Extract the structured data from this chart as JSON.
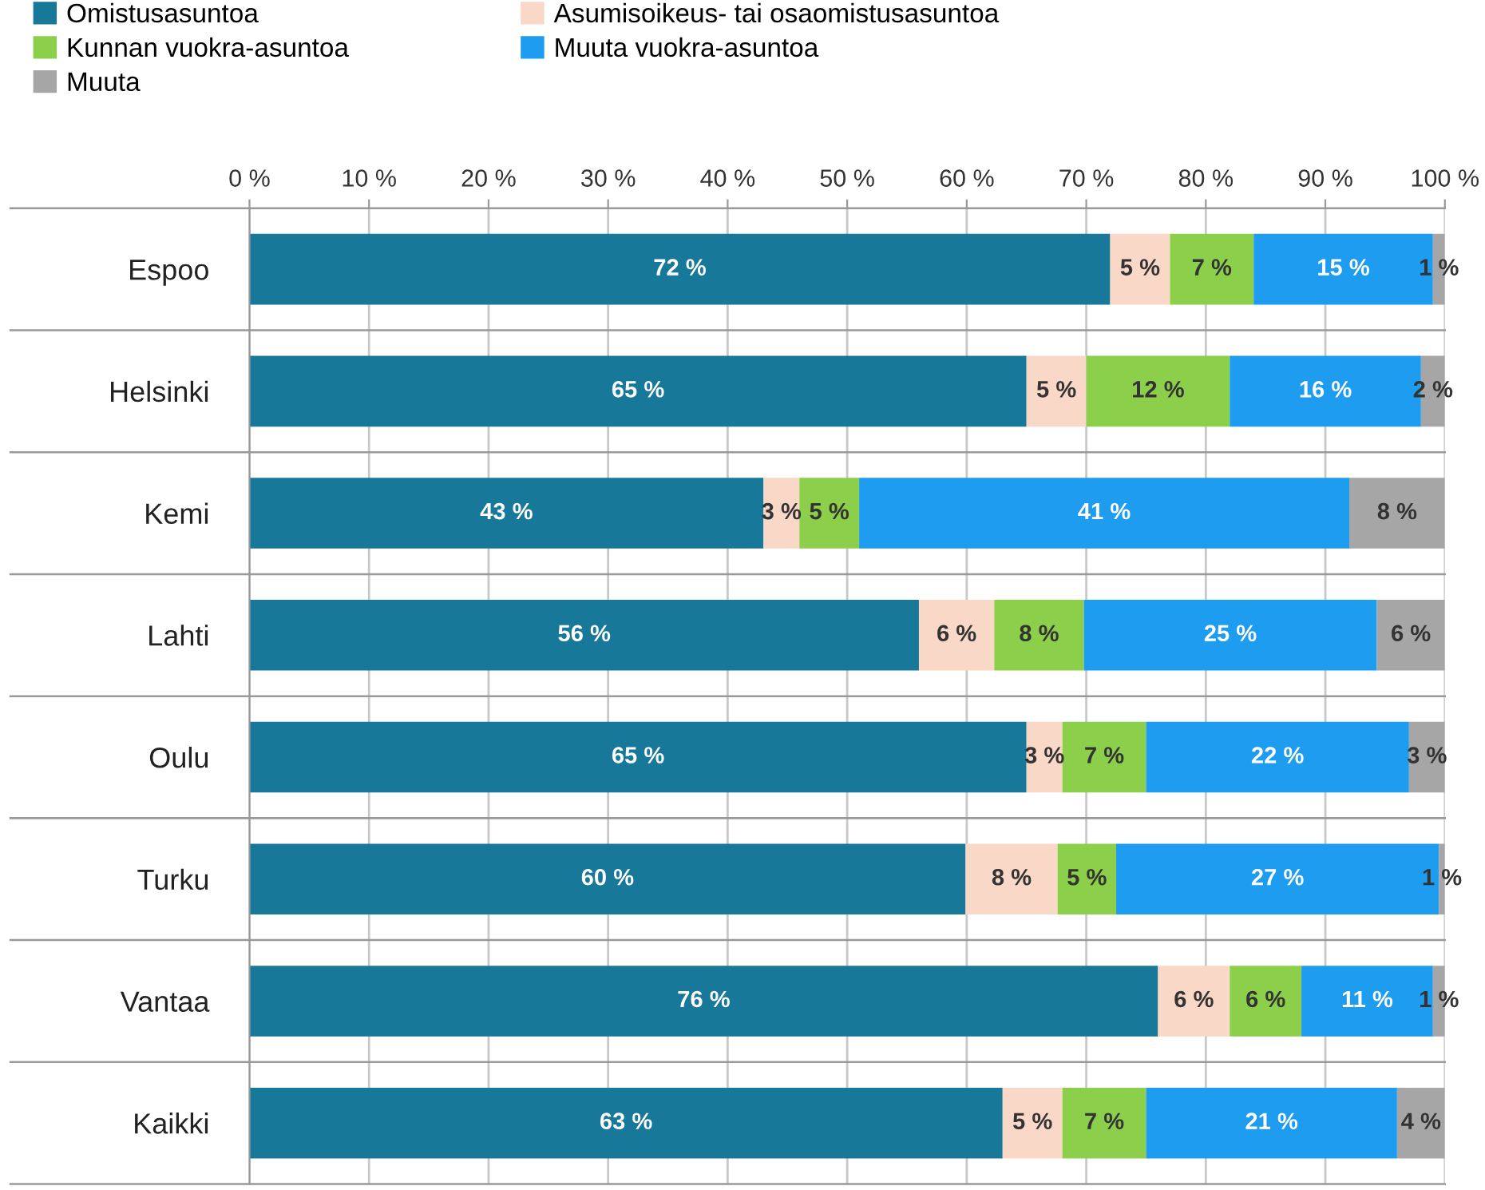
{
  "chart_data": {
    "type": "bar",
    "orientation": "horizontal",
    "stacked": true,
    "categories": [
      "Espoo",
      "Helsinki",
      "Kemi",
      "Lahti",
      "Oulu",
      "Turku",
      "Vantaa",
      "Kaikki"
    ],
    "series": [
      {
        "name": "Omistusasuntoa",
        "color": "#18789a",
        "values": [
          72,
          65,
          43,
          56.0,
          65,
          59.9,
          76,
          63
        ],
        "value_labels": [
          "72 %",
          "65 %",
          "43 %",
          "56 %",
          "65 %",
          "60 %",
          "76 %",
          "63 %"
        ]
      },
      {
        "name": "Asumisoikeus- tai osaomistusasuntoa",
        "color": "#f9d8c7",
        "values": [
          5,
          5,
          3,
          6.3,
          3,
          7.7,
          6,
          5
        ],
        "value_labels": [
          "5 %",
          "5 %",
          "3 %",
          "6 %",
          "3 %",
          "8 %",
          "6 %",
          "5 %"
        ]
      },
      {
        "name": "Kunnan vuokra-asuntoa",
        "color": "#8ccf4a",
        "values": [
          7,
          12,
          5,
          7.5,
          7,
          4.9,
          6,
          7
        ],
        "value_labels": [
          "7 %",
          "12 %",
          "5 %",
          "8 %",
          "7 %",
          "5 %",
          "6 %",
          "7 %"
        ]
      },
      {
        "name": "Muuta vuokra-asuntoa",
        "color": "#1e9cf0",
        "values": [
          15,
          16,
          41,
          24.5,
          22,
          27.0,
          11,
          21
        ],
        "value_labels": [
          "15 %",
          "16 %",
          "41 %",
          "25 %",
          "22 %",
          "27 %",
          "11 %",
          "21 %"
        ]
      },
      {
        "name": "Muuta",
        "color": "#a6a6a6",
        "values": [
          1,
          2,
          8,
          5.7,
          3,
          0.5,
          1,
          4
        ],
        "value_labels": [
          "1 %",
          "2 %",
          "8 %",
          "6 %",
          "3 %",
          "1 %",
          "1 %",
          "4 %"
        ]
      }
    ],
    "xlim": [
      0,
      100
    ],
    "xticks": [
      {
        "value": 0,
        "label": "0 %"
      },
      {
        "value": 10,
        "label": "10 %"
      },
      {
        "value": 20,
        "label": "20 %"
      },
      {
        "value": 30,
        "label": "30 %"
      },
      {
        "value": 40,
        "label": "40 %"
      },
      {
        "value": 50,
        "label": "50 %"
      },
      {
        "value": 60,
        "label": "60 %"
      },
      {
        "value": 70,
        "label": "70 %"
      },
      {
        "value": 80,
        "label": "80 %"
      },
      {
        "value": 90,
        "label": "90 %"
      },
      {
        "value": 100,
        "label": "100 %"
      }
    ],
    "grid": "x",
    "legend": "top left"
  }
}
